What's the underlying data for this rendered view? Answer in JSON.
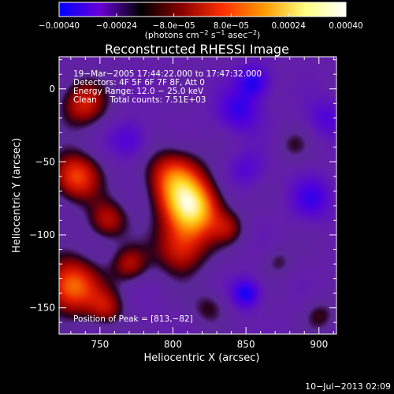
{
  "chart_data": {
    "type": "heatmap",
    "title": "Reconstructed RHESSI Image",
    "xlabel": "Heliocentric X (arcsec)",
    "ylabel": "Heliocentric Y (arcsec)",
    "xlim": [
      722,
      912
    ],
    "ylim": [
      -168,
      22
    ],
    "x_ticks": [
      750,
      800,
      850,
      900
    ],
    "x_tick_labels": [
      "750",
      "800",
      "850",
      "900"
    ],
    "y_ticks": [
      0,
      -50,
      -100,
      -150
    ],
    "y_tick_labels": [
      "0",
      "−50",
      "−100",
      "−150"
    ],
    "colorbar": {
      "range": [
        -0.0004,
        0.0004
      ],
      "ticks": [
        -0.0004,
        -0.00024,
        -8e-05,
        8e-05,
        0.00024,
        0.0004
      ],
      "tick_labels": [
        "−0.00040",
        "−0.00024",
        "−8.0e−05",
        "8.0e−05",
        "0.00024",
        "0.00040"
      ],
      "unit_main": "(photons cm",
      "unit_exp1": "−2",
      "unit_mid": " s",
      "unit_exp2": "−1",
      "unit_end": " asec",
      "unit_exp3": "−2",
      "unit_close": ")",
      "colors": [
        "#0000ff",
        "#6a00d8",
        "#000000",
        "#8a0000",
        "#ff3000",
        "#ff9a00",
        "#ffff80",
        "#ffffff"
      ]
    },
    "annotations": [
      "19−Mar−2005 17:44:22.000 to 17:47:32.000",
      "Detectors: 4F 5F 6F 7F 8F, Att 0",
      "Energy Range: 12.0 − 25.0 keV",
      "Clean     Total counts: 7.51E+03"
    ],
    "peak_label": "Position of Peak = [813,−82]",
    "peak": [
      813,
      -82
    ],
    "blobs": [
      {
        "x": 813,
        "y": -82,
        "r": 14,
        "v": 0.0004
      },
      {
        "x": 800,
        "y": -60,
        "r": 14,
        "v": 0.00026
      },
      {
        "x": 805,
        "y": -110,
        "r": 13,
        "v": 0.00022
      },
      {
        "x": 730,
        "y": -135,
        "r": 14,
        "v": 0.00032
      },
      {
        "x": 733,
        "y": -60,
        "r": 12,
        "v": 0.00028
      },
      {
        "x": 738,
        "y": -10,
        "r": 12,
        "v": 0.00022
      },
      {
        "x": 755,
        "y": -90,
        "r": 10,
        "v": 0.0002
      },
      {
        "x": 770,
        "y": -120,
        "r": 9,
        "v": 0.00018
      },
      {
        "x": 755,
        "y": -150,
        "r": 9,
        "v": 0.00016
      },
      {
        "x": 825,
        "y": -150,
        "r": 9,
        "v": 0.00012
      },
      {
        "x": 838,
        "y": -95,
        "r": 8,
        "v": 0.00012
      },
      {
        "x": 872,
        "y": -118,
        "r": 7,
        "v": 0.0001
      },
      {
        "x": 900,
        "y": -155,
        "r": 8,
        "v": 0.00012
      },
      {
        "x": 882,
        "y": -38,
        "r": 8,
        "v": 9e-05
      },
      {
        "x": 770,
        "y": -35,
        "r": 9,
        "v": -0.00016
      },
      {
        "x": 845,
        "y": -15,
        "r": 10,
        "v": -0.0002
      },
      {
        "x": 850,
        "y": -55,
        "r": 9,
        "v": -0.00012
      },
      {
        "x": 855,
        "y": 5,
        "r": 8,
        "v": -0.00024
      },
      {
        "x": 850,
        "y": -140,
        "r": 7,
        "v": -0.00026
      },
      {
        "x": 895,
        "y": -75,
        "r": 10,
        "v": -0.00018
      },
      {
        "x": 905,
        "y": -20,
        "r": 9,
        "v": -0.00014
      }
    ]
  },
  "footer": {
    "date": "10−Jul−2013 02:09"
  }
}
